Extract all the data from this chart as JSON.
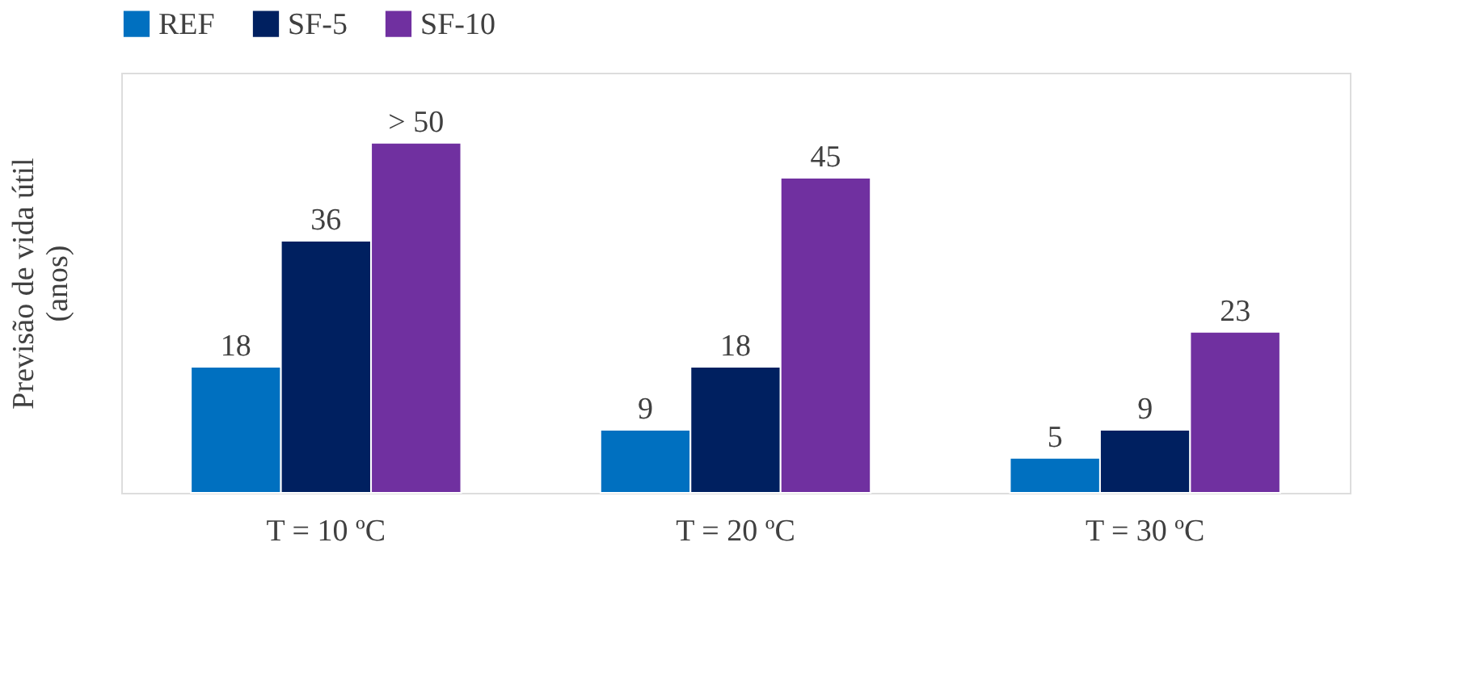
{
  "chart_data": {
    "type": "bar",
    "ylabel": "Previsão de vida útil (anos)",
    "categories": [
      "T = 10 ºC",
      "T = 20 ºC",
      "T = 30 ºC"
    ],
    "series": [
      {
        "name": "REF",
        "color": "#0070c0",
        "values": [
          18,
          9,
          5
        ],
        "value_labels": [
          "18",
          "9",
          "5"
        ]
      },
      {
        "name": "SF-5",
        "color": "#002060",
        "values": [
          36,
          18,
          9
        ],
        "value_labels": [
          "36",
          "18",
          "9"
        ]
      },
      {
        "name": "SF-10",
        "color": "#7030a0",
        "values": [
          50,
          45,
          23
        ],
        "value_labels": [
          "> 50",
          "45",
          "23"
        ]
      }
    ],
    "ylim": [
      0,
      60
    ],
    "tick_labels": "x",
    "grid": false,
    "legend": "top"
  }
}
